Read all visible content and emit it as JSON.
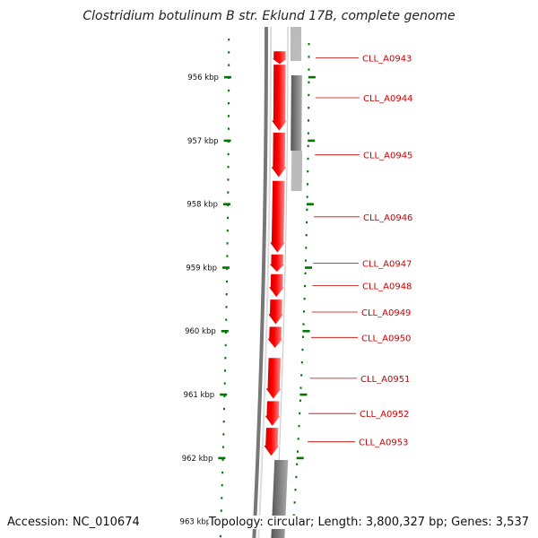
{
  "title": "Clostridium botulinum B str. Eklund 17B, complete genome",
  "accession": "Accession: NC_010674",
  "topology": "Topology: circular; Length: 3,800,327 bp; Genes: 3,537",
  "colors": {
    "gene_forward": "#ff0000",
    "ruler": "#007700",
    "label": "#cc0000",
    "backbone": "#777777",
    "track_light": "#bbbbbb",
    "track_dark": "#666666"
  },
  "ruler_ticks": [
    {
      "label": "956 kbp",
      "kbp": 956
    },
    {
      "label": "957 kbp",
      "kbp": 957
    },
    {
      "label": "958 kbp",
      "kbp": 958
    },
    {
      "label": "959 kbp",
      "kbp": 959
    },
    {
      "label": "960 kbp",
      "kbp": 960
    },
    {
      "label": "961 kbp",
      "kbp": 961
    },
    {
      "label": "962 kbp",
      "kbp": 962
    },
    {
      "label": "963 kbp",
      "kbp": 963
    }
  ],
  "genes": [
    {
      "name": "CLL_A0943",
      "start_kbp": 955.59,
      "end_kbp": 955.8
    },
    {
      "name": "CLL_A0944",
      "start_kbp": 955.8,
      "end_kbp": 956.85
    },
    {
      "name": "CLL_A0945",
      "start_kbp": 956.87,
      "end_kbp": 957.58
    },
    {
      "name": "CLL_A0946",
      "start_kbp": 957.63,
      "end_kbp": 958.77
    },
    {
      "name": "CLL_A0947",
      "start_kbp": 958.79,
      "end_kbp": 959.07
    },
    {
      "name": "CLL_A0948",
      "start_kbp": 959.1,
      "end_kbp": 959.47
    },
    {
      "name": "CLL_A0949",
      "start_kbp": 959.5,
      "end_kbp": 959.9
    },
    {
      "name": "CLL_A0950",
      "start_kbp": 959.93,
      "end_kbp": 960.27
    },
    {
      "name": "CLL_A0951",
      "start_kbp": 960.42,
      "end_kbp": 961.07
    },
    {
      "name": "CLL_A0952",
      "start_kbp": 961.1,
      "end_kbp": 961.5
    },
    {
      "name": "CLL_A0953",
      "start_kbp": 961.52,
      "end_kbp": 961.97
    }
  ]
}
